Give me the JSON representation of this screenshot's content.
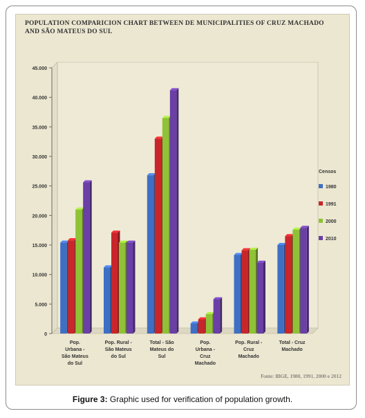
{
  "figure": {
    "caption_label": "Figure 3:",
    "caption_text": " Graphic used for verification of population growth."
  },
  "chart_data": {
    "type": "bar",
    "title": "POPULATION COMPARICION CHART BETWEEN DE MUNICIPALITIES OF CRUZ MACHADO AND SÃO MATEUS DO SUL",
    "xlabel": "",
    "ylabel": "",
    "ylim": [
      0,
      45000
    ],
    "yticks": [
      0,
      5000,
      10000,
      15000,
      20000,
      25000,
      30000,
      35000,
      40000,
      45000
    ],
    "ytick_labels": [
      "0",
      "5.000",
      "10.000",
      "15.000",
      "20.000",
      "25.000",
      "30.000",
      "35.000",
      "40.000",
      "45.000"
    ],
    "grid": false,
    "legend_position": "right",
    "legend_title": "Censos",
    "categories": [
      [
        "Pop.",
        "Urbana -",
        "São Mateus",
        "do Sul"
      ],
      [
        "Pop. Rural -",
        "São Mateus",
        "do Sul"
      ],
      [
        "Total - São",
        "Mateus do",
        "Sul"
      ],
      [
        "Pop.",
        "Urbana -",
        "Cruz",
        "Machado"
      ],
      [
        "Pop. Rural -",
        "Cruz",
        "Machado"
      ],
      [
        "Total - Cruz",
        "Machado"
      ]
    ],
    "series": [
      {
        "name": "1980",
        "color": "#3f6fc4",
        "values": [
          15400,
          11200,
          26800,
          1700,
          13300,
          15000
        ]
      },
      {
        "name": "1991",
        "color": "#c8262b",
        "values": [
          15800,
          17100,
          33000,
          2400,
          14100,
          16500
        ]
      },
      {
        "name": "2000",
        "color": "#8fc236",
        "values": [
          21000,
          15400,
          36500,
          3300,
          14200,
          17600
        ]
      },
      {
        "name": "2010",
        "color": "#6a3fa6",
        "values": [
          25600,
          15400,
          41200,
          5800,
          12000,
          17900
        ]
      }
    ],
    "source_note": "Fonte: IBGE, 1980, 1991, 2000 e 2012"
  }
}
